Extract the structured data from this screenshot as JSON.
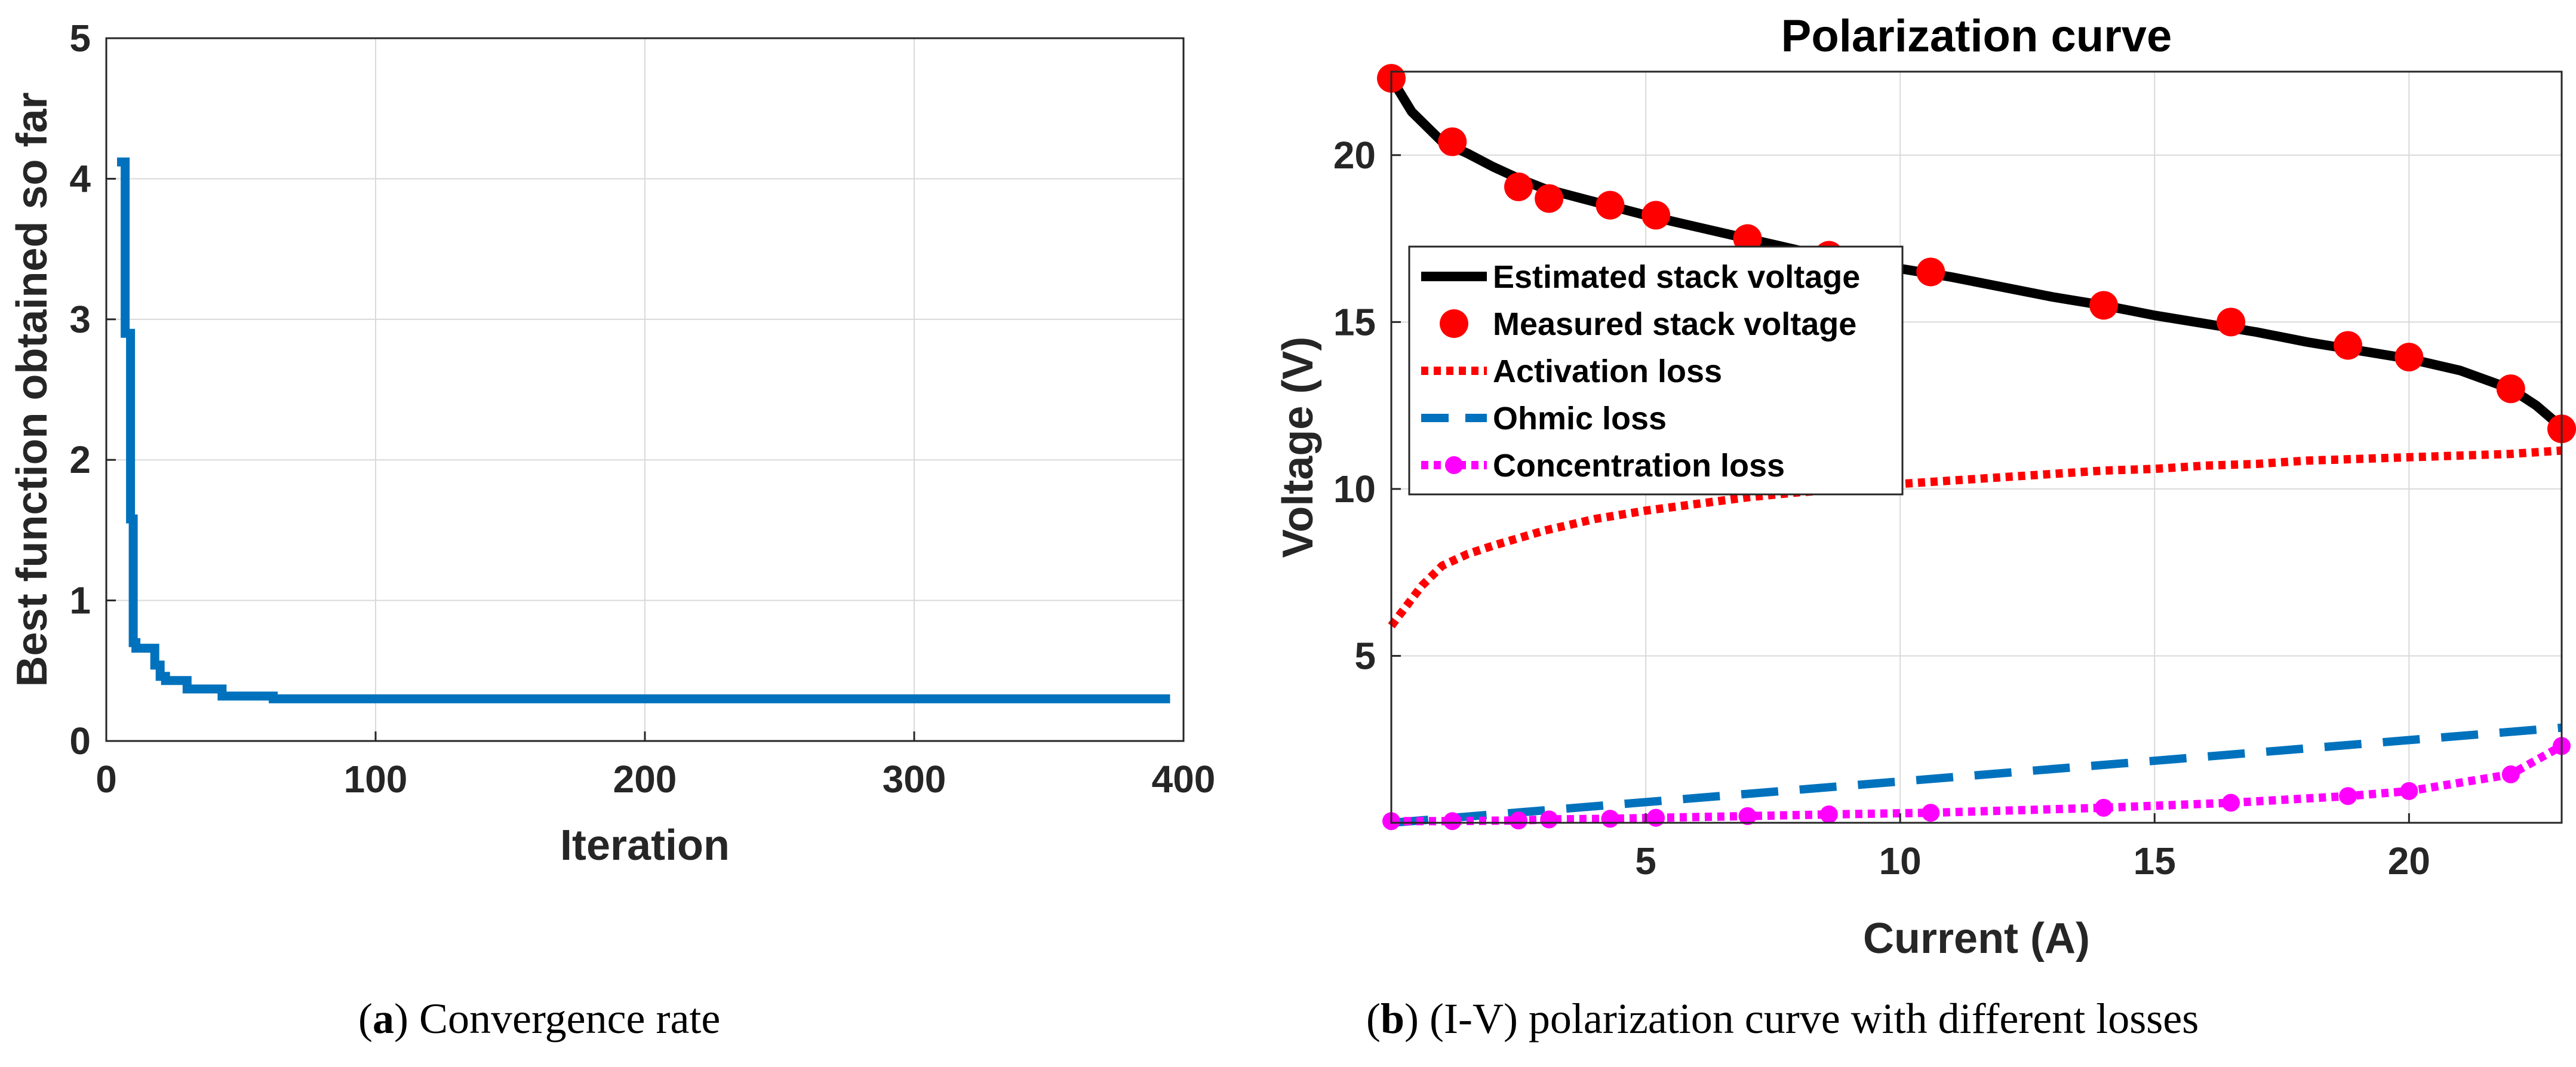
{
  "captions": {
    "a": {
      "letter": "a",
      "text": "Convergence rate"
    },
    "b": {
      "letter": "b",
      "text": "(I-V) polarization curve with different losses"
    }
  },
  "colors": {
    "convergence": "#0072BD",
    "estimated": "#000000",
    "measured": "#FF0000",
    "activation": "#FF0000",
    "ohmic": "#0072BD",
    "concentration": "#FF00FF",
    "grid": "#D9D9D9",
    "axis": "#262626"
  },
  "chart_data": [
    {
      "type": "line",
      "title": "",
      "xlabel": "Iteration",
      "ylabel": "Best function obtained so far",
      "xlim": [
        0,
        400
      ],
      "ylim": [
        0,
        5
      ],
      "xticks": [
        0,
        100,
        200,
        300,
        400
      ],
      "yticks": [
        0,
        1,
        2,
        3,
        4,
        5
      ],
      "grid": true,
      "series": [
        {
          "x": [
            4,
            7,
            7,
            9,
            9,
            10,
            10,
            11,
            11,
            18,
            18,
            20,
            20,
            22,
            22,
            30,
            30,
            43,
            43,
            62,
            62,
            395
          ],
          "y": [
            4.12,
            4.12,
            2.9,
            2.9,
            1.58,
            1.58,
            0.7,
            0.7,
            0.66,
            0.66,
            0.54,
            0.54,
            0.46,
            0.46,
            0.43,
            0.43,
            0.37,
            0.37,
            0.32,
            0.32,
            0.3,
            0.3
          ]
        }
      ]
    },
    {
      "type": "line",
      "title": "Polarization curve",
      "xlabel": "Current (A)",
      "ylabel": "Voltage (V)",
      "xlim": [
        0,
        23
      ],
      "ylim": [
        0,
        22.5
      ],
      "xticks": [
        5,
        10,
        15,
        20
      ],
      "yticks": [
        5,
        10,
        15,
        20
      ],
      "grid": true,
      "legend": "upper-left",
      "series": [
        {
          "name": "Estimated stack voltage",
          "x": [
            0,
            0.4,
            1,
            1.5,
            2,
            2.5,
            3,
            4,
            5,
            6,
            7,
            8,
            9,
            10,
            11,
            12,
            13,
            14,
            15,
            16,
            17,
            18,
            19,
            20,
            21,
            22,
            22.5,
            23
          ],
          "y": [
            22.3,
            21.3,
            20.4,
            20.05,
            19.65,
            19.3,
            19.0,
            18.6,
            18.2,
            17.85,
            17.5,
            17.15,
            16.85,
            16.6,
            16.35,
            16.05,
            15.75,
            15.5,
            15.2,
            14.95,
            14.7,
            14.4,
            14.15,
            13.9,
            13.55,
            13.0,
            12.5,
            11.85
          ]
        },
        {
          "name": "Measured stack voltage",
          "x": [
            0,
            1.2,
            2.5,
            3.1,
            4.3,
            5.2,
            7.0,
            8.6,
            10.6,
            14.0,
            16.5,
            18.8,
            20.0,
            22.0,
            23.0
          ],
          "y": [
            22.3,
            20.4,
            19.05,
            18.7,
            18.5,
            18.2,
            17.5,
            17.0,
            16.5,
            15.5,
            15.0,
            14.3,
            13.95,
            13.0,
            11.8
          ]
        },
        {
          "name": "Activation loss",
          "x": [
            0,
            0.3,
            0.6,
            1,
            1.5,
            2,
            3,
            4,
            5,
            6,
            7,
            8,
            9,
            10,
            11,
            12,
            13,
            14,
            15,
            16,
            17,
            18,
            19,
            20,
            21,
            22,
            23
          ],
          "y": [
            5.9,
            6.5,
            7.1,
            7.7,
            8.05,
            8.3,
            8.75,
            9.1,
            9.35,
            9.55,
            9.75,
            9.9,
            10.0,
            10.15,
            10.25,
            10.35,
            10.45,
            10.55,
            10.6,
            10.7,
            10.75,
            10.85,
            10.9,
            10.95,
            11.0,
            11.05,
            11.15
          ]
        },
        {
          "name": "Ohmic loss",
          "x": [
            0,
            23
          ],
          "y": [
            0,
            2.85
          ]
        },
        {
          "name": "Concentration loss",
          "x": [
            0,
            1.2,
            2.5,
            3.1,
            4.3,
            5.2,
            7.0,
            8.6,
            10.6,
            14.0,
            16.5,
            18.8,
            20.0,
            22.0,
            23.0
          ],
          "y": [
            0.05,
            0.05,
            0.07,
            0.1,
            0.12,
            0.15,
            0.2,
            0.25,
            0.3,
            0.45,
            0.6,
            0.8,
            0.95,
            1.45,
            2.3
          ]
        }
      ]
    }
  ]
}
